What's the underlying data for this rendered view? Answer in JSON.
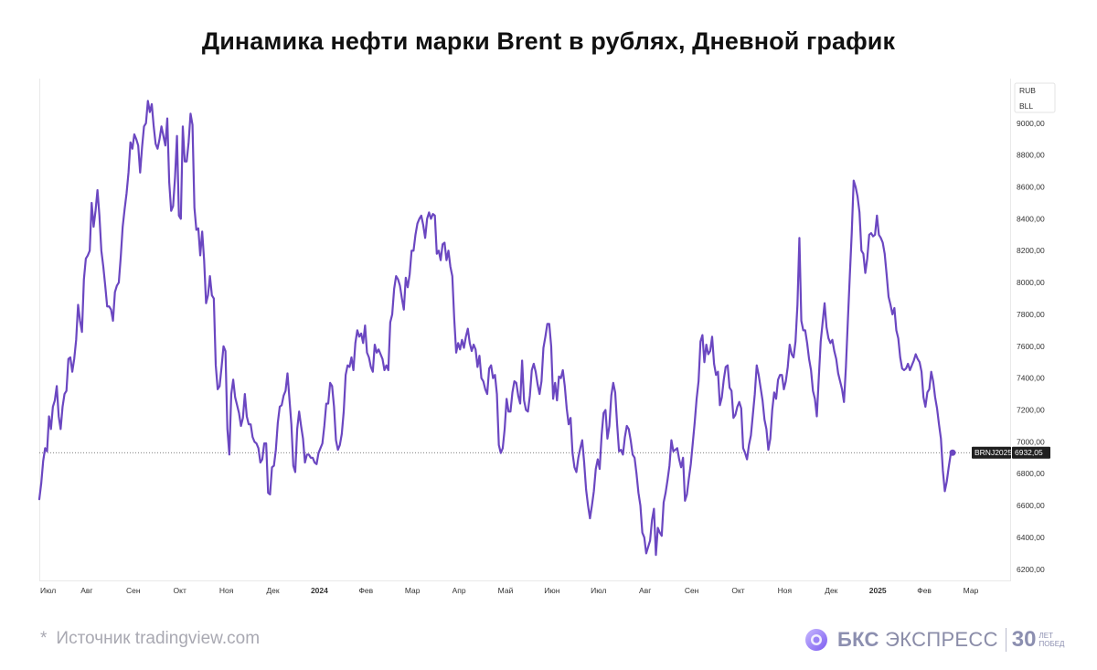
{
  "title": "Динамика нефти марки Brent в рублях, Дневной график",
  "source": {
    "star": "*",
    "text": "Источник tradingview.com"
  },
  "brand": {
    "name_bold": "БКС",
    "name_rest": " ЭКСПРЕСС",
    "years": "30",
    "years_sub1": "ЛЕТ",
    "years_sub2": "ПОБЕД"
  },
  "colors": {
    "line": "#6b47c1",
    "axis_text": "#333333",
    "grid": "#e6e6e6",
    "label_bg": "#1f1f1f"
  },
  "chart_data": {
    "type": "line",
    "title": "Динамика нефти марки Brent в рублях, Дневной график",
    "xlabel": "",
    "ylabel": "",
    "ylim": [
      6130,
      9280
    ],
    "x_ticks": [
      "Июл",
      "Авг",
      "Сен",
      "Окт",
      "Ноя",
      "Дек",
      "2024",
      "Фев",
      "Мар",
      "Апр",
      "Май",
      "Июн",
      "Июл",
      "Авг",
      "Сен",
      "Окт",
      "Ноя",
      "Дек",
      "2025",
      "Фев",
      "Мар"
    ],
    "bold_ticks": [
      "2024",
      "2025"
    ],
    "y_ticks": [
      "6200,00",
      "6400,00",
      "6600,00",
      "6800,00",
      "7000,00",
      "7200,00",
      "7400,00",
      "7600,00",
      "7800,00",
      "8000,00",
      "8200,00",
      "8400,00",
      "8600,00",
      "8800,00",
      "9000,00"
    ],
    "currency_labels": [
      "RUB",
      "BLL"
    ],
    "last_value": 6932.05,
    "last_value_label": "6932,05",
    "ticker": "BRNJ2025",
    "series": [
      {
        "name": "BRNJ2025",
        "values": [
          6640,
          6740,
          6880,
          6960,
          6940,
          7160,
          7080,
          7220,
          7260,
          7350,
          7160,
          7080,
          7220,
          7300,
          7320,
          7520,
          7530,
          7440,
          7520,
          7640,
          7860,
          7760,
          7690,
          8020,
          8150,
          8170,
          8200,
          8500,
          8350,
          8450,
          8580,
          8420,
          8200,
          8100,
          7980,
          7850,
          7850,
          7830,
          7760,
          7940,
          7980,
          8000,
          8160,
          8350,
          8460,
          8560,
          8690,
          8880,
          8840,
          8930,
          8900,
          8860,
          8690,
          8850,
          8980,
          9000,
          9140,
          9070,
          9120,
          8980,
          8870,
          8840,
          8900,
          8980,
          8920,
          8860,
          9030,
          8630,
          8450,
          8480,
          8660,
          8920,
          8420,
          8400,
          8980,
          8760,
          8760,
          8880,
          9060,
          8990,
          8470,
          8330,
          8340,
          8170,
          8320,
          8140,
          7870,
          7920,
          8040,
          7920,
          7900,
          7480,
          7330,
          7350,
          7470,
          7600,
          7570,
          7080,
          6920,
          7300,
          7390,
          7280,
          7230,
          7180,
          7100,
          7150,
          7300,
          7160,
          7110,
          7110,
          7030,
          7000,
          6990,
          6960,
          6870,
          6890,
          6990,
          6990,
          6680,
          6670,
          6840,
          6850,
          6950,
          7120,
          7220,
          7230,
          7290,
          7320,
          7430,
          7270,
          7110,
          6850,
          6810,
          7080,
          7190,
          7100,
          7020,
          6870,
          6920,
          6920,
          6900,
          6900,
          6870,
          6860,
          6930,
          6960,
          6990,
          7100,
          7240,
          7240,
          7370,
          7350,
          7220,
          7010,
          6950,
          6980,
          7050,
          7190,
          7420,
          7480,
          7470,
          7530,
          7450,
          7620,
          7700,
          7660,
          7680,
          7620,
          7730,
          7560,
          7530,
          7470,
          7440,
          7610,
          7560,
          7580,
          7550,
          7520,
          7450,
          7480,
          7450,
          7750,
          7800,
          7960,
          8040,
          8020,
          7980,
          7900,
          7830,
          8030,
          7970,
          8050,
          8200,
          8200,
          8300,
          8370,
          8400,
          8420,
          8360,
          8280,
          8400,
          8440,
          8400,
          8430,
          8420,
          8180,
          8200,
          8140,
          8240,
          8250,
          8140,
          8200,
          8100,
          8040,
          7770,
          7560,
          7620,
          7580,
          7640,
          7590,
          7660,
          7710,
          7620,
          7570,
          7610,
          7580,
          7470,
          7540,
          7400,
          7380,
          7330,
          7300,
          7460,
          7480,
          7400,
          7420,
          7300,
          6980,
          6930,
          6960,
          7080,
          7270,
          7190,
          7190,
          7310,
          7380,
          7370,
          7290,
          7240,
          7510,
          7260,
          7200,
          7190,
          7290,
          7450,
          7490,
          7440,
          7360,
          7300,
          7380,
          7590,
          7660,
          7740,
          7740,
          7600,
          7270,
          7370,
          7260,
          7410,
          7400,
          7450,
          7350,
          7210,
          7110,
          7150,
          6930,
          6840,
          6810,
          6900,
          6960,
          7010,
          6870,
          6700,
          6600,
          6520,
          6600,
          6690,
          6830,
          6890,
          6830,
          7040,
          7180,
          7200,
          7020,
          7100,
          7290,
          7370,
          7310,
          7110,
          6940,
          6950,
          6920,
          7030,
          7100,
          7080,
          7010,
          6920,
          6900,
          6800,
          6680,
          6600,
          6430,
          6400,
          6300,
          6340,
          6380,
          6510,
          6580,
          6290,
          6460,
          6430,
          6410,
          6620,
          6680,
          6760,
          6850,
          7010,
          6940,
          6950,
          6960,
          6890,
          6840,
          6900,
          6630,
          6670,
          6770,
          6860,
          6990,
          7120,
          7270,
          7380,
          7630,
          7670,
          7500,
          7610,
          7550,
          7570,
          7660,
          7490,
          7420,
          7440,
          7230,
          7280,
          7390,
          7470,
          7480,
          7340,
          7320,
          7150,
          7170,
          7220,
          7250,
          7210,
          6960,
          6930,
          6890,
          6980,
          7040,
          7170,
          7300,
          7480,
          7420,
          7340,
          7260,
          7140,
          7080,
          6950,
          7020,
          7200,
          7310,
          7270,
          7390,
          7420,
          7420,
          7330,
          7380,
          7470,
          7610,
          7550,
          7530,
          7630,
          7860,
          8280,
          7760,
          7700,
          7700,
          7620,
          7520,
          7450,
          7320,
          7270,
          7160,
          7400,
          7630,
          7750,
          7870,
          7720,
          7650,
          7620,
          7640,
          7570,
          7520,
          7430,
          7380,
          7330,
          7250,
          7470,
          7760,
          8040,
          8310,
          8640,
          8600,
          8540,
          8440,
          8200,
          8180,
          8060,
          8150,
          8300,
          8310,
          8290,
          8300,
          8420,
          8300,
          8280,
          8250,
          8180,
          8050,
          7910,
          7860,
          7800,
          7840,
          7700,
          7650,
          7530,
          7460,
          7450,
          7460,
          7490,
          7450,
          7480,
          7510,
          7550,
          7520,
          7500,
          7440,
          7280,
          7220,
          7310,
          7330,
          7440,
          7380,
          7280,
          7210,
          7110,
          7020,
          6820,
          6690,
          6750,
          6840,
          6920,
          6932
        ]
      }
    ]
  }
}
